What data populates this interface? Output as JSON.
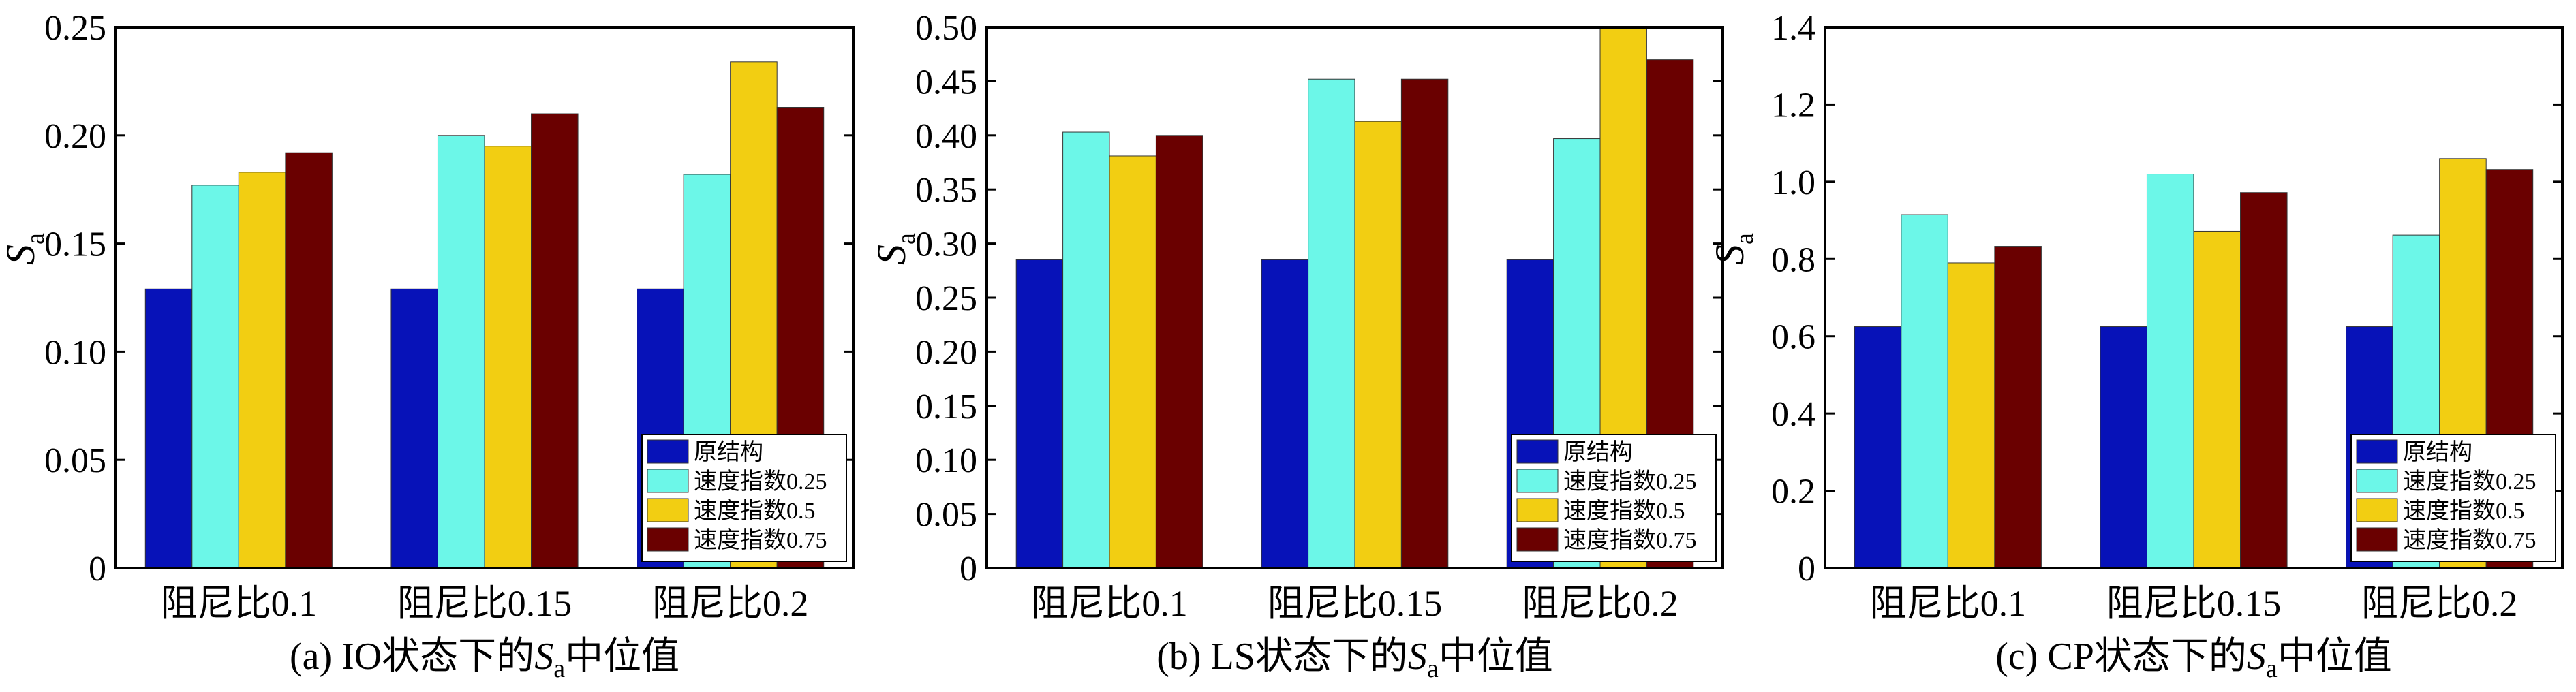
{
  "series_colors": [
    "#0712B8",
    "#6CF7E8",
    "#F2CE12",
    "#6A0000"
  ],
  "chart_data": [
    {
      "type": "bar",
      "caption_prefix": "(a) IO状态下的",
      "caption_symbol": "S",
      "caption_sub": "a",
      "caption_suffix": "中位值",
      "ylabel_symbol": "S",
      "ylabel_sub": "a",
      "categories": [
        "阻尼比0.1",
        "阻尼比0.15",
        "阻尼比0.2"
      ],
      "series": [
        {
          "name": "原结构",
          "values": [
            0.129,
            0.129,
            0.129
          ]
        },
        {
          "name": "速度指数0.25",
          "values": [
            0.177,
            0.2,
            0.182
          ]
        },
        {
          "name": "速度指数0.5",
          "values": [
            0.183,
            0.195,
            0.234
          ]
        },
        {
          "name": "速度指数0.75",
          "values": [
            0.192,
            0.21,
            0.213
          ]
        }
      ],
      "ylim": [
        0,
        0.25
      ],
      "yticks": [
        "0",
        "0.05",
        "0.10",
        "0.15",
        "0.20",
        "0.25"
      ],
      "legend_position": "bottom-right"
    },
    {
      "type": "bar",
      "caption_prefix": "(b) LS状态下的",
      "caption_symbol": "S",
      "caption_sub": "a",
      "caption_suffix": "中位值",
      "ylabel_symbol": "S",
      "ylabel_sub": "a",
      "categories": [
        "阻尼比0.1",
        "阻尼比0.15",
        "阻尼比0.2"
      ],
      "series": [
        {
          "name": "原结构",
          "values": [
            0.285,
            0.285,
            0.285
          ]
        },
        {
          "name": "速度指数0.25",
          "values": [
            0.403,
            0.452,
            0.397
          ]
        },
        {
          "name": "速度指数0.5",
          "values": [
            0.381,
            0.413,
            0.5
          ]
        },
        {
          "name": "速度指数0.75",
          "values": [
            0.4,
            0.452,
            0.47
          ]
        }
      ],
      "ylim": [
        0,
        0.5
      ],
      "yticks": [
        "0",
        "0.05",
        "0.10",
        "0.15",
        "0.20",
        "0.25",
        "0.30",
        "0.35",
        "0.40",
        "0.45",
        "0.50"
      ],
      "legend_position": "bottom-right"
    },
    {
      "type": "bar",
      "caption_prefix": "(c) CP状态下的",
      "caption_symbol": "S",
      "caption_sub": "a",
      "caption_suffix": "中位值",
      "ylabel_symbol": "S",
      "ylabel_sub": "a",
      "categories": [
        "阻尼比0.1",
        "阻尼比0.15",
        "阻尼比0.2"
      ],
      "series": [
        {
          "name": "原结构",
          "values": [
            0.625,
            0.625,
            0.625
          ]
        },
        {
          "name": "速度指数0.25",
          "values": [
            0.915,
            1.02,
            0.862
          ]
        },
        {
          "name": "速度指数0.5",
          "values": [
            0.79,
            0.872,
            1.06
          ]
        },
        {
          "name": "速度指数0.75",
          "values": [
            0.833,
            0.972,
            1.032
          ]
        }
      ],
      "ylim": [
        0,
        1.4
      ],
      "yticks": [
        "0",
        "0.2",
        "0.4",
        "0.6",
        "0.8",
        "1.0",
        "1.2",
        "1.4"
      ],
      "legend_position": "bottom-right"
    }
  ]
}
